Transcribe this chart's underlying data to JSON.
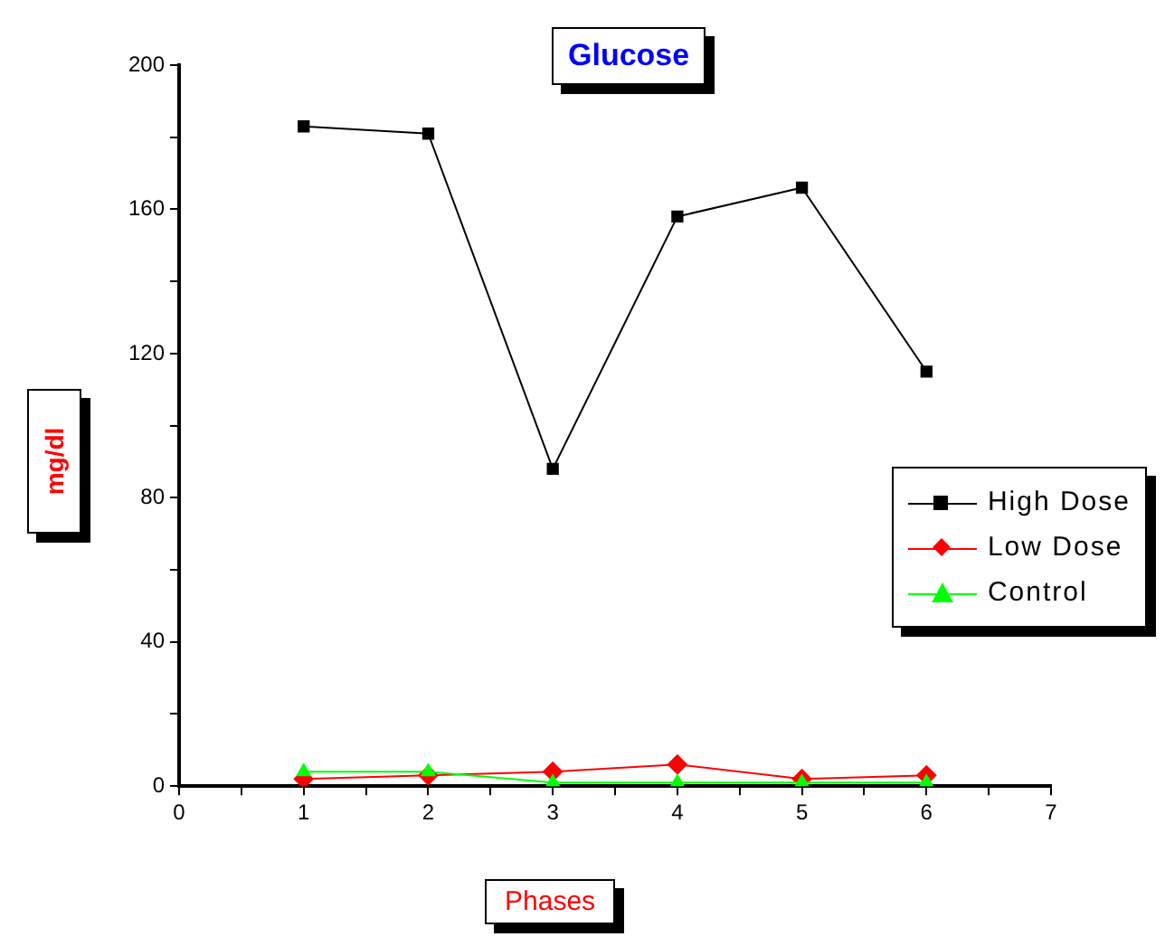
{
  "chart_data": {
    "type": "line",
    "title": "Glucose",
    "xlabel": "Phases",
    "ylabel": "mg/dl",
    "x": [
      1,
      2,
      3,
      4,
      5,
      6
    ],
    "series": [
      {
        "name": "High Dose",
        "color": "#000000",
        "marker": "square",
        "values": [
          183,
          181,
          88,
          158,
          166,
          115
        ]
      },
      {
        "name": "Low Dose",
        "color": "#ff0000",
        "marker": "diamond",
        "values": [
          2,
          3,
          4,
          6,
          2,
          3
        ]
      },
      {
        "name": "Control",
        "color": "#00ff00",
        "marker": "triangle",
        "values": [
          4,
          4,
          1,
          1,
          1,
          1
        ]
      }
    ],
    "xlim": [
      0,
      7
    ],
    "xticks": [
      0,
      {
        "value": 0.5,
        "label": null
      },
      1,
      {
        "value": 1.5,
        "label": null
      },
      2,
      {
        "value": 2.5,
        "label": null
      },
      3,
      {
        "value": 3.5,
        "label": null
      },
      4,
      {
        "value": 4.5,
        "label": null
      },
      5,
      {
        "value": 5.5,
        "label": null
      },
      6,
      {
        "value": 6.5,
        "label": null
      },
      7
    ],
    "ylim": [
      0,
      200
    ],
    "yticks": [
      0,
      {
        "value": 20,
        "label": null
      },
      40,
      {
        "value": 60,
        "label": null
      },
      80,
      {
        "value": 100,
        "label": null
      },
      120,
      {
        "value": 140,
        "label": null
      },
      160,
      {
        "value": 180,
        "label": null
      },
      200
    ],
    "grid": false,
    "legend": "right",
    "line_style": "solid"
  }
}
